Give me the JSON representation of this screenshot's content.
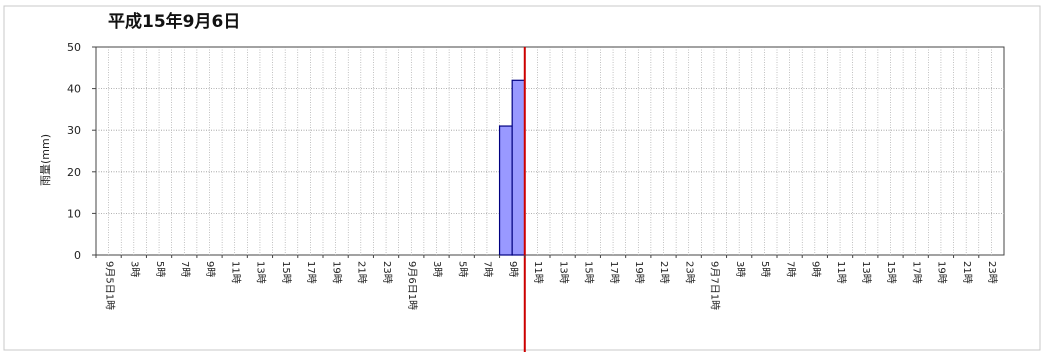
{
  "chart_data": {
    "type": "bar",
    "title": "平成15年9月6日",
    "ylabel": "雨量(mm)",
    "xlabel": "",
    "ylim": [
      0,
      50
    ],
    "yticks": [
      0,
      10,
      20,
      30,
      40,
      50
    ],
    "grid": true,
    "x_tick_labels": [
      "9月5日1時",
      "3時",
      "5時",
      "7時",
      "9時",
      "11時",
      "13時",
      "15時",
      "17時",
      "19時",
      "21時",
      "23時",
      "9月6日1時",
      "3時",
      "5時",
      "7時",
      "9時",
      "11時",
      "13時",
      "15時",
      "17時",
      "19時",
      "21時",
      "23時",
      "9月7日1時",
      "3時",
      "5時",
      "7時",
      "9時",
      "11時",
      "13時",
      "15時",
      "17時",
      "19時",
      "21時",
      "23時"
    ],
    "series": [
      {
        "bars": [
          {
            "hour_index": 32,
            "label": "9月6日9時",
            "value": 31
          },
          {
            "hour_index": 33,
            "label": "9月6日10時",
            "value": 42
          }
        ]
      }
    ],
    "marker_hour_index": 34,
    "colors": {
      "bar_fill": "#9999ff",
      "bar_stroke": "#000080",
      "marker": "#cc0000",
      "grid": "#999999"
    }
  }
}
